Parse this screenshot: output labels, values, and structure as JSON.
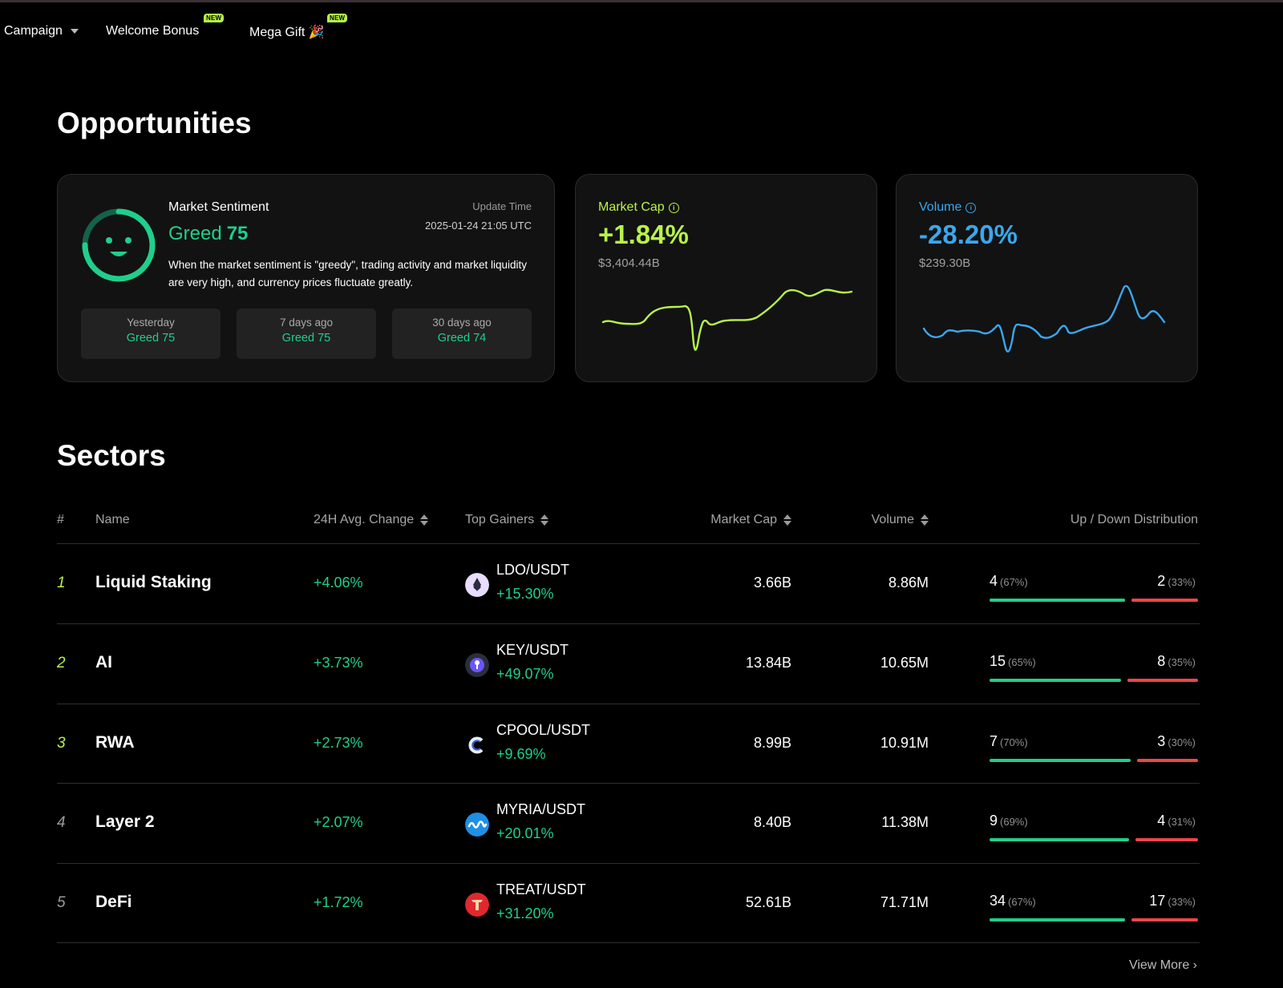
{
  "nav": {
    "items": [
      {
        "label": "Campaign"
      },
      {
        "label": "Welcome Bonus",
        "badge": "NEW"
      },
      {
        "label": "Mega Gift 🎉",
        "badge": "NEW"
      }
    ]
  },
  "opportunities": {
    "title": "Opportunities",
    "sentiment": {
      "title": "Market Sentiment",
      "value_label": "Greed",
      "value": "75",
      "update_label": "Update Time",
      "update_time": "2025-01-24 21:05 UTC",
      "description": "When the market sentiment is \"greedy\", trading activity and market liquidity are very high, and currency prices fluctuate greatly.",
      "gauge_fraction": 0.75,
      "history": [
        {
          "label": "Yesterday",
          "value": "Greed 75"
        },
        {
          "label": "7 days ago",
          "value": "Greed 75"
        },
        {
          "label": "30 days ago",
          "value": "Greed 74"
        }
      ]
    },
    "market_cap": {
      "label": "Market Cap",
      "change": "+1.84%",
      "total": "$3,404.44B",
      "color": "#b7f34a"
    },
    "volume": {
      "label": "Volume",
      "change": "-28.20%",
      "total": "$239.30B",
      "color": "#3aa7ee"
    }
  },
  "sectors": {
    "title": "Sectors",
    "headers": {
      "rank": "#",
      "name": "Name",
      "avg_change": "24H Avg. Change",
      "top_gainers": "Top Gainers",
      "market_cap": "Market Cap",
      "volume": "Volume",
      "distribution": "Up / Down Distribution"
    },
    "rows": [
      {
        "rank": "1",
        "name": "Liquid Staking",
        "avg_change": "+4.06%",
        "pair": "LDO/USDT",
        "pair_change": "+15.30%",
        "icon": "ldo-icon",
        "market_cap": "3.66B",
        "volume": "8.86M",
        "up": "4",
        "up_pct": "(67%)",
        "down": "2",
        "down_pct": "(33%)",
        "up_fraction": 0.67
      },
      {
        "rank": "2",
        "name": "AI",
        "avg_change": "+3.73%",
        "pair": "KEY/USDT",
        "pair_change": "+49.07%",
        "icon": "key-icon",
        "market_cap": "13.84B",
        "volume": "10.65M",
        "up": "15",
        "up_pct": "(65%)",
        "down": "8",
        "down_pct": "(35%)",
        "up_fraction": 0.65
      },
      {
        "rank": "3",
        "name": "RWA",
        "avg_change": "+2.73%",
        "pair": "CPOOL/USDT",
        "pair_change": "+9.69%",
        "icon": "cpool-icon",
        "market_cap": "8.99B",
        "volume": "10.91M",
        "up": "7",
        "up_pct": "(70%)",
        "down": "3",
        "down_pct": "(30%)",
        "up_fraction": 0.7
      },
      {
        "rank": "4",
        "name": "Layer 2",
        "avg_change": "+2.07%",
        "pair": "MYRIA/USDT",
        "pair_change": "+20.01%",
        "icon": "myria-icon",
        "market_cap": "8.40B",
        "volume": "11.38M",
        "up": "9",
        "up_pct": "(69%)",
        "down": "4",
        "down_pct": "(31%)",
        "up_fraction": 0.69
      },
      {
        "rank": "5",
        "name": "DeFi",
        "avg_change": "+1.72%",
        "pair": "TREAT/USDT",
        "pair_change": "+31.20%",
        "icon": "treat-icon",
        "market_cap": "52.61B",
        "volume": "71.71M",
        "up": "34",
        "up_pct": "(67%)",
        "down": "17",
        "down_pct": "(33%)",
        "up_fraction": 0.67
      }
    ],
    "view_more": "View More ›"
  },
  "colors": {
    "accent_green": "#1fcf8c",
    "lime": "#b7f34a",
    "blue": "#3aa7ee",
    "red": "#f0454a",
    "rank_top": "#b7f34a",
    "rank_other": "#9a9a9a"
  }
}
